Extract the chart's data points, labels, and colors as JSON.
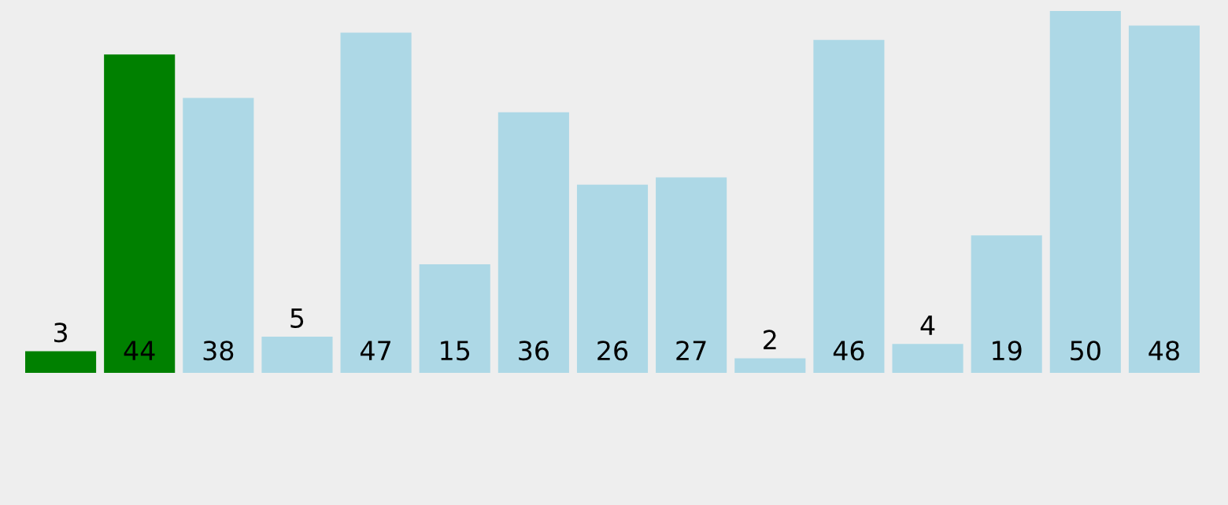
{
  "chart_data": {
    "type": "bar",
    "categories": [
      null,
      null,
      null,
      null,
      null,
      null,
      null,
      null,
      null,
      null,
      null,
      null,
      null,
      null,
      null
    ],
    "values": [
      3,
      44,
      38,
      5,
      47,
      15,
      36,
      26,
      27,
      2,
      46,
      4,
      19,
      50,
      48
    ],
    "colors": [
      "#008000",
      "#008000",
      "#add8e6",
      "#add8e6",
      "#add8e6",
      "#add8e6",
      "#add8e6",
      "#add8e6",
      "#add8e6",
      "#add8e6",
      "#add8e6",
      "#add8e6",
      "#add8e6",
      "#add8e6",
      "#add8e6"
    ],
    "data_labels": true,
    "grid": false,
    "legend": false
  }
}
